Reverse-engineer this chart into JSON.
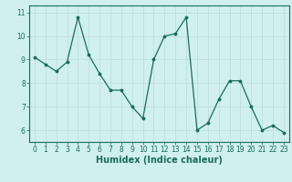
{
  "x": [
    0,
    1,
    2,
    3,
    4,
    5,
    6,
    7,
    8,
    9,
    10,
    11,
    12,
    13,
    14,
    15,
    16,
    17,
    18,
    19,
    20,
    21,
    22,
    23
  ],
  "y": [
    9.1,
    8.8,
    8.5,
    8.9,
    10.8,
    9.2,
    8.4,
    7.7,
    7.7,
    7.0,
    6.5,
    9.0,
    10.0,
    10.1,
    10.8,
    6.0,
    6.3,
    7.3,
    8.1,
    8.1,
    7.0,
    6.0,
    6.2,
    5.9
  ],
  "line_color": "#1a6b5e",
  "bg_color": "#cff0ee",
  "grid_color": "#c0dedd",
  "xlabel": "Humidex (Indice chaleur)",
  "yticks": [
    6,
    7,
    8,
    9,
    10,
    11
  ],
  "xlim": [
    -0.5,
    23.5
  ],
  "ylim": [
    5.5,
    11.3
  ],
  "tick_fontsize": 5.5,
  "xlabel_fontsize": 7.0
}
